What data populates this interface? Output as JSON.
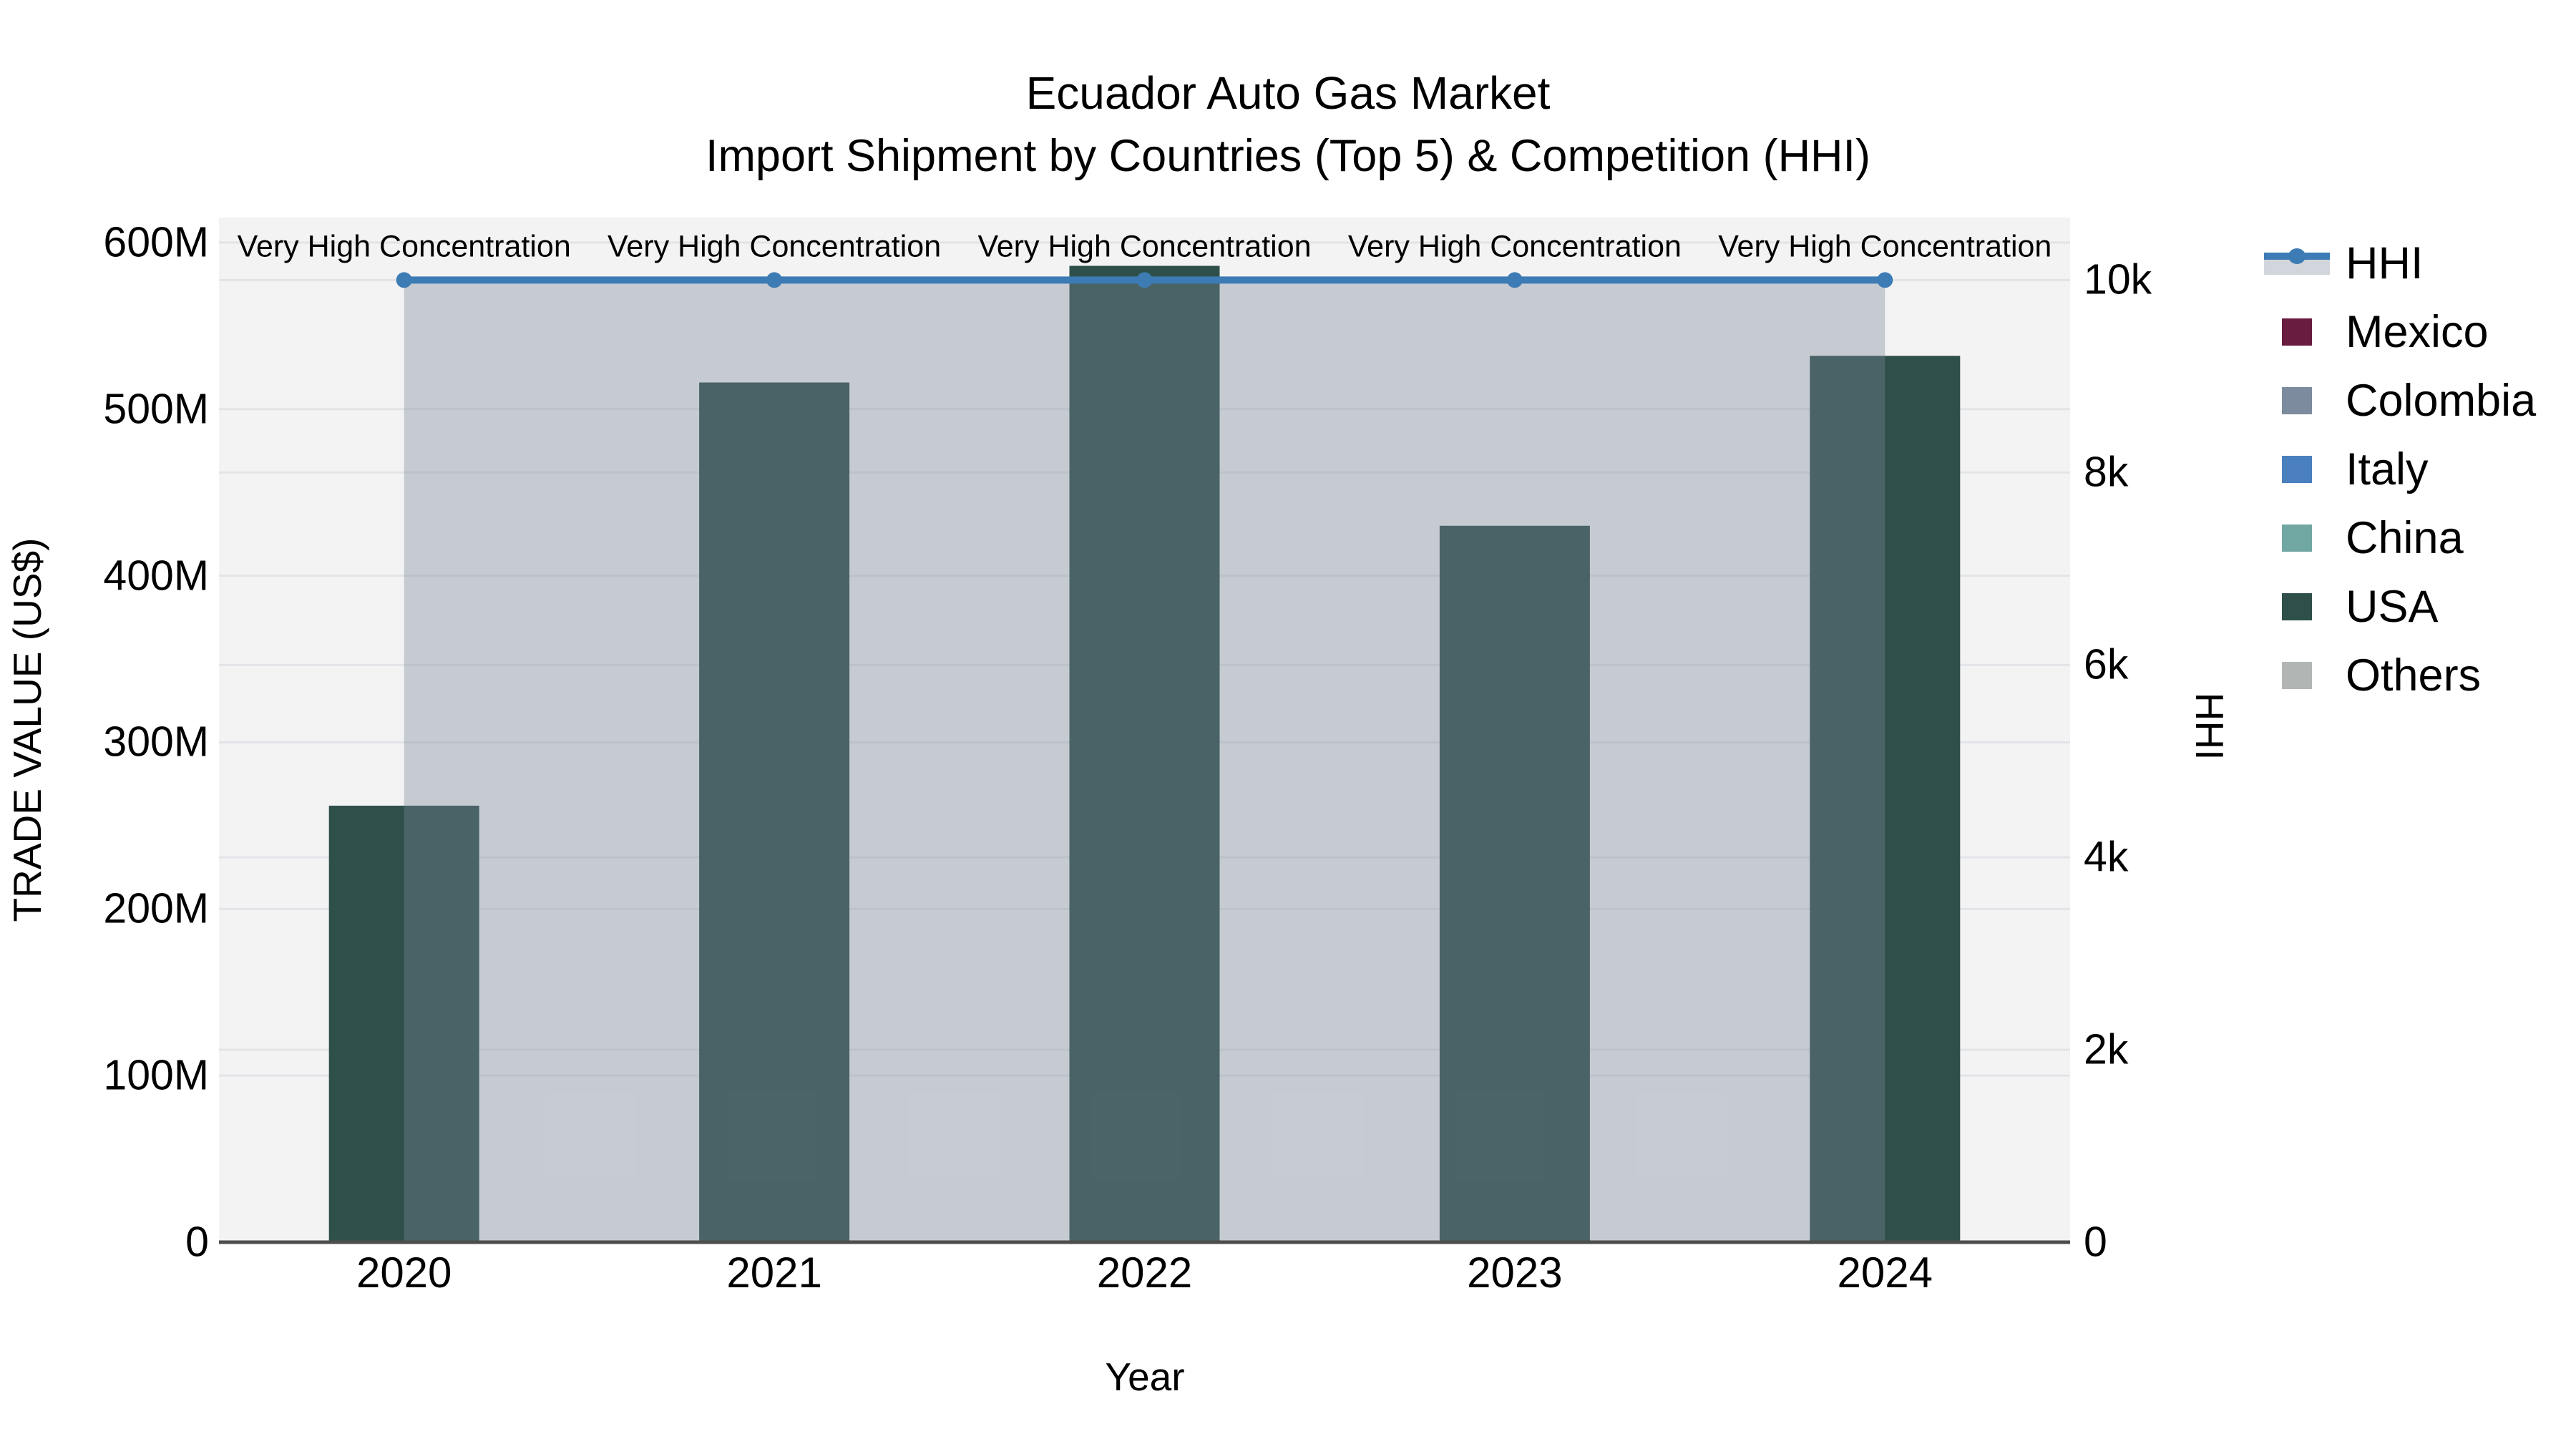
{
  "title": {
    "line1": "Ecuador Auto Gas Market",
    "line2": "Import Shipment by Countries (Top 5) & Competition (HHI)"
  },
  "axes": {
    "x": {
      "title": "Year",
      "categories": [
        "2020",
        "2021",
        "2022",
        "2023",
        "2024"
      ]
    },
    "y_left": {
      "title": "TRADE VALUE (US$)",
      "tick_labels": [
        "0",
        "100M",
        "200M",
        "300M",
        "400M",
        "500M",
        "600M"
      ],
      "tick_values": [
        0,
        100,
        200,
        300,
        400,
        500,
        600
      ],
      "max": 615
    },
    "y_right": {
      "title": "HHI",
      "tick_labels": [
        "0",
        "2k",
        "4k",
        "6k",
        "8k",
        "10k"
      ],
      "tick_values": [
        0,
        2000,
        4000,
        6000,
        8000,
        10000
      ],
      "max": 10650
    }
  },
  "legend": {
    "items": [
      {
        "label": "HHI",
        "type": "line",
        "color": "#3c7bb4",
        "band_color": "#d2d6dc"
      },
      {
        "label": "Mexico",
        "type": "swatch",
        "color": "#691c3e"
      },
      {
        "label": "Colombia",
        "type": "swatch",
        "color": "#7c8b9d"
      },
      {
        "label": "Italy",
        "type": "swatch",
        "color": "#4a80bd"
      },
      {
        "label": "China",
        "type": "swatch",
        "color": "#71a7a2"
      },
      {
        "label": "USA",
        "type": "swatch",
        "color": "#2f4f4a"
      },
      {
        "label": "Others",
        "type": "swatch",
        "color": "#b1b6b5"
      }
    ]
  },
  "annotations": {
    "label": "Very High Concentration",
    "years": [
      "2020",
      "2021",
      "2022",
      "2023",
      "2024"
    ]
  },
  "colors": {
    "plot_bg": "#f3f3f4",
    "grid": "#e2e4e7",
    "axis_line": "#4d4d4d",
    "bar_default": "#2f4f4a",
    "hhi_line": "#3c7bb4",
    "hhi_fill": "rgba(123,136,153,0.37)",
    "text": "#000000"
  },
  "chart_data": {
    "type": "bar",
    "categories": [
      "2020",
      "2021",
      "2022",
      "2023",
      "2024"
    ],
    "series": [
      {
        "name": "Mexico",
        "type": "bar",
        "axis": "left",
        "values": [
          0,
          0,
          0,
          0,
          0
        ]
      },
      {
        "name": "Colombia",
        "type": "bar",
        "axis": "left",
        "values": [
          0,
          0,
          0,
          0,
          0
        ]
      },
      {
        "name": "Italy",
        "type": "bar",
        "axis": "left",
        "values": [
          0,
          0,
          0,
          0,
          0
        ]
      },
      {
        "name": "China",
        "type": "bar",
        "axis": "left",
        "values": [
          0,
          0,
          0,
          0,
          0
        ]
      },
      {
        "name": "USA",
        "type": "bar",
        "axis": "left",
        "values": [
          262,
          516,
          586,
          430,
          532
        ]
      },
      {
        "name": "Others",
        "type": "bar",
        "axis": "left",
        "values": [
          0,
          0,
          0,
          0,
          0
        ]
      },
      {
        "name": "HHI",
        "type": "line",
        "axis": "right",
        "values": [
          10000,
          10000,
          10000,
          10000,
          10000
        ]
      }
    ],
    "values_unit_left": "US$ millions",
    "title": "Ecuador Auto Gas Market",
    "subtitle": "Import Shipment by Countries (Top 5) & Competition (HHI)",
    "xlabel": "Year",
    "ylabel_left": "TRADE VALUE (US$)",
    "ylabel_right": "HHI",
    "ylim_left": [
      0,
      615
    ],
    "ylim_right": [
      0,
      10650
    ],
    "annotations": [
      "Very High Concentration",
      "Very High Concentration",
      "Very High Concentration",
      "Very High Concentration",
      "Very High Concentration"
    ],
    "legend_position": "right-outside",
    "grid": true,
    "bar_style": "stacked",
    "hhi_area_fill": true
  }
}
